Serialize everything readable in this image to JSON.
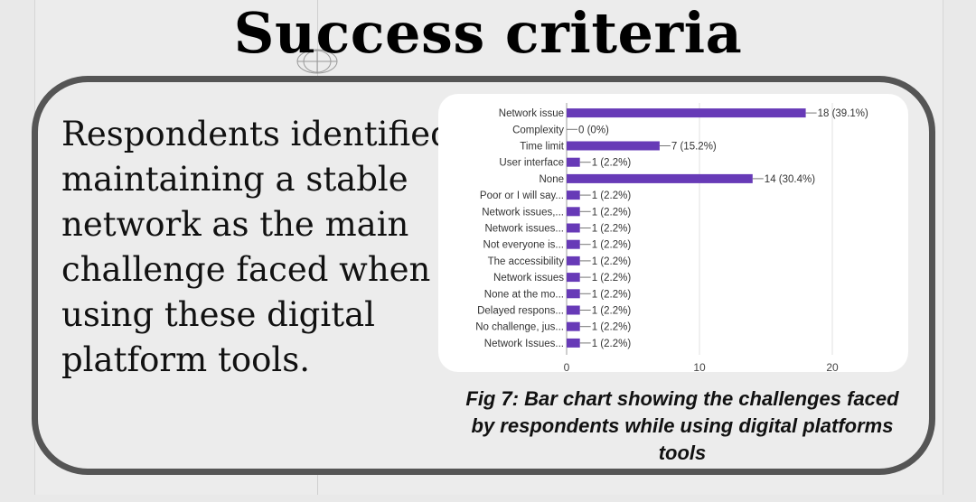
{
  "slide": {
    "title": "Success criteria",
    "body_text": "Respondents identified maintaining a stable network as the main challenge faced when using these digital platform tools.",
    "caption": "Fig 7: Bar chart showing the challenges faced by respondents while using digital platforms tools"
  },
  "colors": {
    "bar": "#673ab7",
    "grid": "#e0e0e0",
    "label": "#333333",
    "box_border": "#555555"
  },
  "chart_data": {
    "type": "bar",
    "orientation": "horizontal",
    "categories": [
      "Network issue",
      "Complexity",
      "Time limit",
      "User interface",
      "None",
      "Poor or I will say...",
      "Network issues,...",
      "Network issues...",
      "Not everyone is...",
      "The accessibility",
      "Network issues",
      "None at the mo...",
      "Delayed respons...",
      "No challenge, jus...",
      "Network Issues..."
    ],
    "values": [
      18,
      0,
      7,
      1,
      14,
      1,
      1,
      1,
      1,
      1,
      1,
      1,
      1,
      1,
      1
    ],
    "value_labels": [
      "18 (39.1%)",
      "0 (0%)",
      "7 (15.2%)",
      "1 (2.2%)",
      "14 (30.4%)",
      "1 (2.2%)",
      "1 (2.2%)",
      "1 (2.2%)",
      "1 (2.2%)",
      "1 (2.2%)",
      "1 (2.2%)",
      "1 (2.2%)",
      "1 (2.2%)",
      "1 (2.2%)",
      "1 (2.2%)"
    ],
    "xlim": [
      0,
      20
    ],
    "xticks": [
      0,
      10,
      20
    ],
    "grid": true,
    "title": "",
    "xlabel": "",
    "ylabel": ""
  }
}
